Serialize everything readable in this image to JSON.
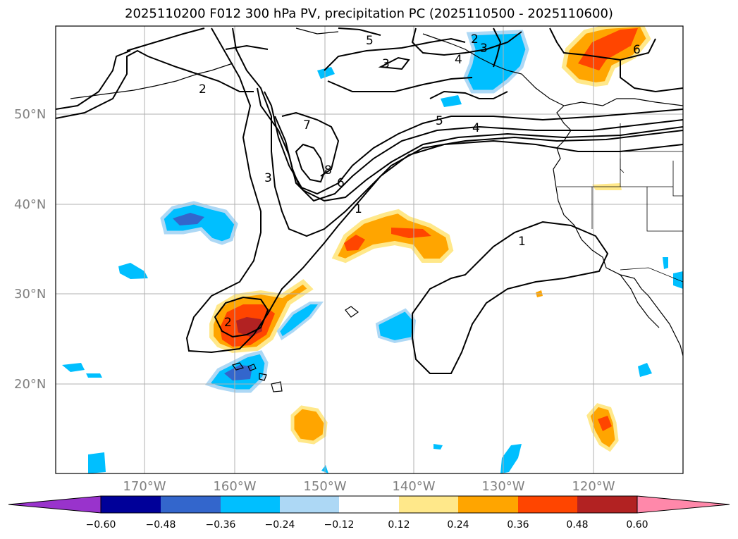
{
  "title": "2025110200 F012 300 hPa PV, precipitation PC (2025110500 - 2025110600)",
  "lat_labels": [
    "50°N",
    "40°N",
    "30°N",
    "20°N"
  ],
  "lon_labels": [
    "170°W",
    "160°W",
    "150°W",
    "140°W",
    "130°W",
    "120°W"
  ],
  "contour_labels": [
    "5",
    "2",
    "3",
    "4",
    "3",
    "2",
    "7",
    "8",
    "6",
    "3",
    "5",
    "4",
    "1",
    "1",
    "2",
    "6"
  ],
  "colorbar": {
    "ticks": [
      "−0.60",
      "−0.48",
      "−0.36",
      "−0.24",
      "−0.12",
      "0.12",
      "0.24",
      "0.36",
      "0.48",
      "0.60"
    ],
    "colors": [
      "#9933cc",
      "#000099",
      "#3366cc",
      "#00bfff",
      "#add8f5",
      "#ffffff",
      "#ffe88a",
      "#ffa500",
      "#ff4500",
      "#b22222",
      "#ff88aa"
    ]
  },
  "colors": {
    "blue_strong": "#00bfff",
    "blue_light": "#add8f5",
    "blue_med": "#3366cc",
    "navy": "#000099",
    "yellow": "#ffe88a",
    "orange": "#ffa500",
    "red": "#ff4500",
    "darkred": "#b22222"
  }
}
